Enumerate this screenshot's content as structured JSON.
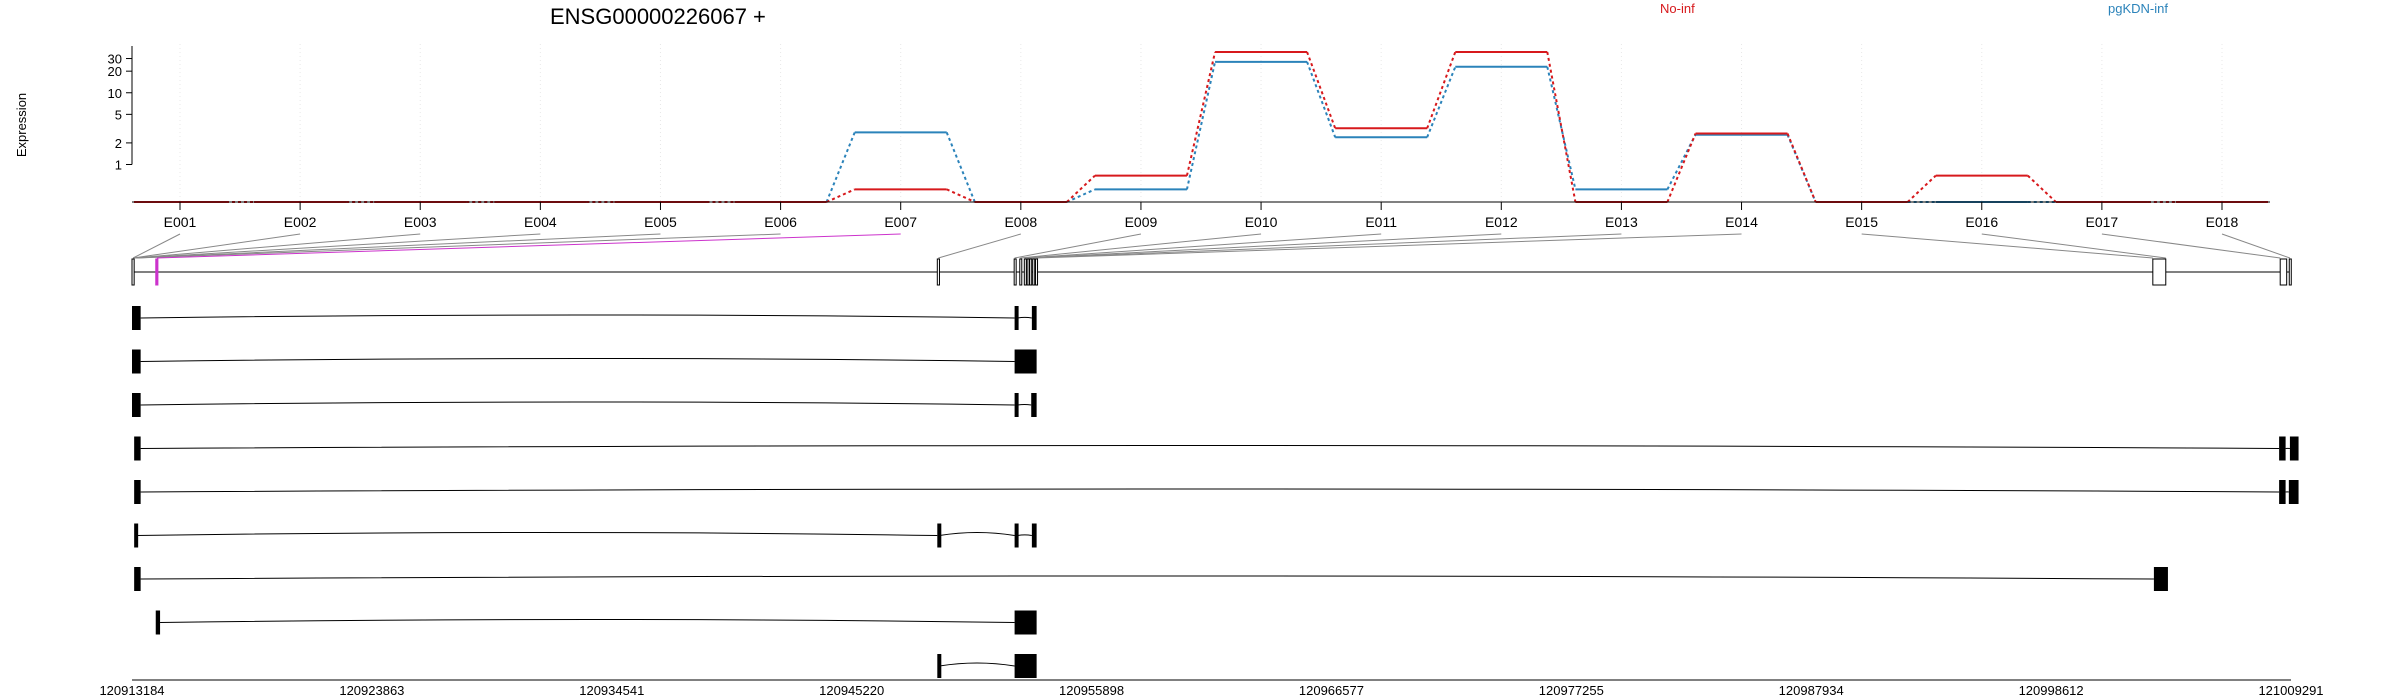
{
  "chart_data": {
    "type": "line",
    "title": "ENSG00000226067 +",
    "ylabel": "Expression",
    "y_scale": "log",
    "y_ticks": [
      {
        "value": 1,
        "label": "1"
      },
      {
        "value": 2,
        "label": "2"
      },
      {
        "value": 5,
        "label": "5"
      },
      {
        "value": 10,
        "label": "10"
      },
      {
        "value": 20,
        "label": "20"
      },
      {
        "value": 30,
        "label": "30"
      }
    ],
    "categories": [
      "E001",
      "E002",
      "E003",
      "E004",
      "E005",
      "E006",
      "E007",
      "E008",
      "E009",
      "E010",
      "E011",
      "E012",
      "E013",
      "E014",
      "E015",
      "E016",
      "E017",
      "E018"
    ],
    "highlight_exon": "E007",
    "colors": {
      "No-inf": "#d7191c",
      "pgKDN-inf": "#2b83ba",
      "highlight": "#cc33cc"
    },
    "series": [
      {
        "name": "No-inf",
        "values": [
          0.3,
          0.3,
          0.3,
          0.3,
          0.3,
          0.3,
          0.45,
          0.3,
          0.7,
          37,
          3.2,
          37,
          0.3,
          2.7,
          0.3,
          0.7,
          0.3,
          0.3
        ]
      },
      {
        "name": "pgKDN-inf",
        "values": [
          0.3,
          0.3,
          0.3,
          0.3,
          0.3,
          0.3,
          2.8,
          0.3,
          0.45,
          27,
          2.4,
          23,
          0.45,
          2.6,
          0.3,
          0.3,
          0.3,
          0.3
        ]
      }
    ],
    "legend": "top-right",
    "grid": true,
    "gene_model": {
      "exon_boxes": [
        [
          0.0,
          0.001
        ],
        [
          0.011,
          0.012
        ],
        [
          0.373,
          0.374
        ],
        [
          0.4086,
          0.4091
        ],
        [
          0.4112,
          0.4118
        ],
        [
          0.4133,
          0.4138
        ],
        [
          0.4146,
          0.415
        ],
        [
          0.4158,
          0.4163
        ],
        [
          0.4172,
          0.4176
        ],
        [
          0.4185,
          0.4193
        ],
        [
          0.936,
          0.942
        ],
        [
          0.995,
          0.998
        ],
        [
          0.9992,
          1.0
        ]
      ],
      "note": "normalized genomic span of merged exon model"
    },
    "transcripts": [
      {
        "start": 0.0,
        "exons": [
          [
            0.0,
            0.004
          ],
          [
            0.4088,
            0.4102
          ],
          [
            0.4168,
            0.419
          ]
        ]
      },
      {
        "start": 0.0,
        "exons": [
          [
            0.0,
            0.004
          ],
          [
            0.4088,
            0.419
          ]
        ]
      },
      {
        "start": 0.0,
        "exons": [
          [
            0.0,
            0.004
          ],
          [
            0.4088,
            0.4102
          ],
          [
            0.4165,
            0.419
          ]
        ]
      },
      {
        "start": 0.001,
        "exons": [
          [
            0.001,
            0.004
          ],
          [
            0.9945,
            0.9975
          ],
          [
            0.9995,
            1.0035
          ]
        ]
      },
      {
        "start": 0.001,
        "exons": [
          [
            0.001,
            0.004
          ],
          [
            0.9945,
            0.9975
          ],
          [
            0.999,
            0.9993
          ],
          [
            0.9995,
            1.0035
          ]
        ]
      },
      {
        "start": 0.001,
        "exons": [
          [
            0.001,
            0.002
          ],
          [
            0.373,
            0.374
          ],
          [
            0.4088,
            0.4102
          ],
          [
            0.4168,
            0.419
          ]
        ]
      },
      {
        "start": 0.001,
        "exons": [
          [
            0.001,
            0.004
          ],
          [
            0.9365,
            0.943
          ]
        ]
      },
      {
        "start": 0.011,
        "exons": [
          [
            0.011,
            0.013
          ],
          [
            0.4088,
            0.419
          ]
        ]
      },
      {
        "start": 0.373,
        "exons": [
          [
            0.373,
            0.374
          ],
          [
            0.4088,
            0.419
          ]
        ]
      }
    ],
    "genomic_axis": {
      "ticks": [
        "120913184",
        "120923863",
        "120934541",
        "120945220",
        "120955898",
        "120966577",
        "120977255",
        "120987934",
        "120998612",
        "121009291"
      ]
    }
  }
}
